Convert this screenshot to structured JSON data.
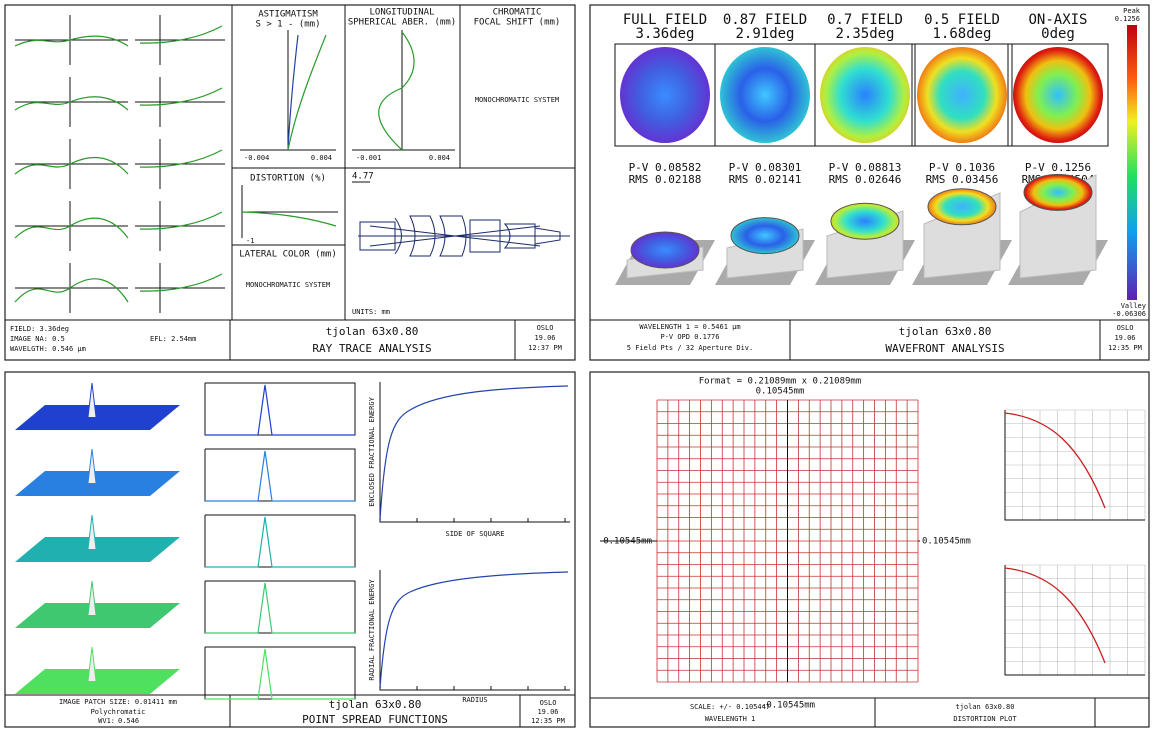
{
  "ray_trace": {
    "astigmatism": {
      "title": "ASTIGMATISM",
      "units": "S > 1 - (mm)",
      "ticks": [
        "-0.004",
        "0.004"
      ]
    },
    "spherical": {
      "title": "LONGITUDINAL",
      "subtitle": "SPHERICAL ABER. (mm)",
      "ticks": [
        "-0.001",
        "0.004"
      ]
    },
    "chromatic": {
      "title": "CHROMATIC",
      "subtitle": "FOCAL SHIFT (mm)",
      "note": "MONOCHROMATIC SYSTEM"
    },
    "distortion": {
      "title": "DISTORTION (%)",
      "tick": "-1"
    },
    "lateral_color": {
      "title": "LATERAL COLOR (mm)",
      "note": "MONOCHROMATIC SYSTEM"
    },
    "lens": {
      "height": "4.77",
      "units": "UNITS: mm"
    },
    "footer": {
      "field": "FIELD: 3.36deg",
      "na": "IMAGE NA: 0.5",
      "wavelength": "WAVELGTH: 0.546 µm",
      "efl": "EFL: 2.54mm",
      "lens": "tjolan 63x0.80",
      "title": "RAY TRACE ANALYSIS",
      "program": "OSLO",
      "date": "19.06",
      "time": "12:37 PM"
    }
  },
  "wavefront": {
    "fields": [
      {
        "name": "FULL FIELD",
        "angle": "3.36deg",
        "pv": "P-V 0.08582",
        "rms": "RMS 0.02188"
      },
      {
        "name": "0.87 FIELD",
        "angle": "2.91deg",
        "pv": "P-V 0.08301",
        "rms": "RMS 0.02141"
      },
      {
        "name": "0.7 FIELD",
        "angle": "2.35deg",
        "pv": "P-V 0.08813",
        "rms": "RMS 0.02646"
      },
      {
        "name": "0.5 FIELD",
        "angle": "1.68deg",
        "pv": "P-V 0.1036",
        "rms": "RMS 0.03456"
      },
      {
        "name": "ON-AXIS",
        "angle": "0deg",
        "pv": "P-V 0.1256",
        "rms": "RMS 0.04504"
      }
    ],
    "peak": {
      "label": "Peak",
      "value": "0.1256"
    },
    "valley": {
      "label": "Valley",
      "value": "-0.06306"
    },
    "footer": {
      "wavelength": "WAVELENGTH 1 = 0.5461 µm",
      "opd": "P-V OPD 0.1776",
      "sampling": "5 Field Pts / 32 Aperture Div.",
      "lens": "tjolan 63x0.80",
      "title": "WAVEFRONT ANALYSIS",
      "program": "OSLO",
      "date": "19.06",
      "time": "12:35 PM"
    }
  },
  "psf": {
    "enclosed_axis": "ENCLOSED FRACTIONAL ENERGY",
    "enclosed_x": "SIDE OF SQUARE",
    "radial_axis": "RADIAL FRACTIONAL ENERGY",
    "radial_x": "RADIUS",
    "footer": {
      "patch": "IMAGE PATCH SIZE: 0.01411 mm",
      "mode": "Polychromatic",
      "wv_label": "WV1:",
      "wv_value": "0.546",
      "lens": "tjolan 63x0.80",
      "title": "POINT SPREAD FUNCTIONS",
      "program": "OSLO",
      "date": "19.06",
      "time": "12:35 PM"
    }
  },
  "distortion_plot": {
    "format": "Format = 0.21089mm x 0.21089mm",
    "top": "0.10545mm",
    "left": "0.10545mm",
    "right": "0.10545mm",
    "bottom": "-0.10545mm",
    "footer": {
      "scale": "SCALE: +/- 0.105447",
      "wavelength": "WAVELENGTH 1",
      "lens": "tjolan 63x0.80",
      "title": "DISTORTION PLOT"
    }
  }
}
